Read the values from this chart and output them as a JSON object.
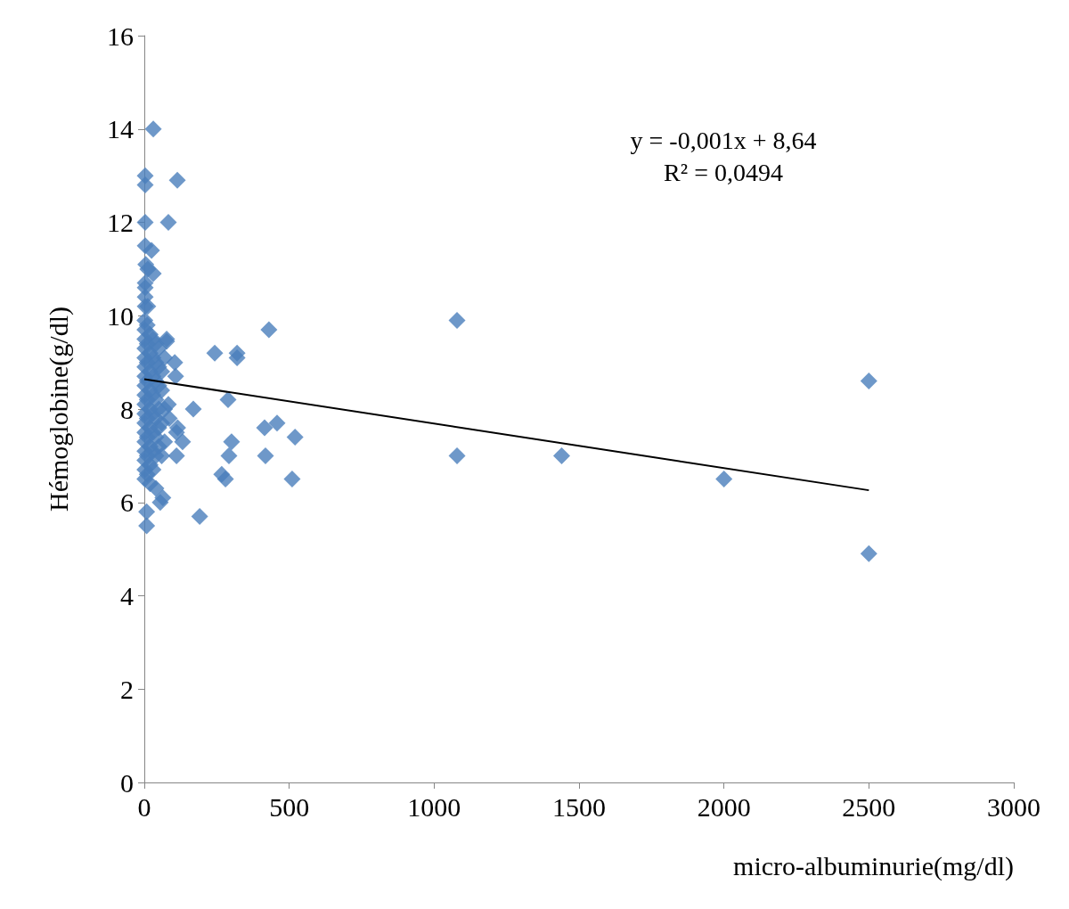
{
  "chart_data": {
    "type": "scatter",
    "xlabel": "micro-albuminurie(mg/dl)",
    "ylabel": "Hémoglobine(g/dl)",
    "xlim": [
      0,
      3000
    ],
    "xticks": [
      0,
      500,
      1000,
      1500,
      2000,
      2500,
      3000
    ],
    "ylim": [
      0,
      16
    ],
    "yticks": [
      0,
      2,
      4,
      6,
      8,
      10,
      12,
      14,
      16
    ],
    "grid": false,
    "marker": "diamond",
    "annotations": [
      "y = -0,001x + 8,64",
      "R² = 0,0494"
    ],
    "series": [
      {
        "color": "#4a7ebb",
        "x": [
          31,
          3,
          3,
          114,
          3,
          83,
          3,
          25,
          5,
          31,
          12,
          3,
          3,
          3,
          3,
          12,
          243,
          320,
          320,
          430,
          1079,
          2500,
          2500,
          2000,
          1440,
          1079,
          169,
          289,
          415,
          458,
          520,
          301,
          292,
          418,
          267,
          280,
          510,
          191,
          8,
          8,
          55,
          64,
          77,
          77,
          105,
          108,
          132,
          111,
          111,
          83,
          86,
          115,
          2,
          2,
          2,
          2,
          2,
          2,
          2,
          2,
          2,
          2,
          2,
          2,
          2,
          2,
          2,
          2,
          2,
          2,
          10,
          10,
          10,
          10,
          10,
          10,
          10,
          10,
          10,
          20,
          20,
          20,
          20,
          20,
          20,
          20,
          20,
          20,
          30,
          30,
          30,
          30,
          30,
          30,
          30,
          30,
          40,
          40,
          40,
          40,
          40,
          40,
          40,
          40,
          50,
          50,
          50,
          50,
          50,
          50,
          60,
          60,
          60,
          60,
          70,
          70,
          70
        ],
        "values": [
          14.0,
          13.0,
          12.8,
          12.9,
          12.0,
          12.0,
          11.5,
          11.4,
          11.1,
          10.9,
          11.0,
          10.7,
          10.6,
          10.4,
          10.2,
          10.2,
          9.2,
          9.2,
          9.1,
          9.7,
          9.9,
          8.6,
          4.9,
          6.5,
          7.0,
          7.0,
          8.0,
          8.2,
          7.6,
          7.7,
          7.4,
          7.3,
          7.0,
          7.0,
          6.6,
          6.5,
          6.5,
          5.7,
          5.5,
          5.8,
          6.0,
          6.1,
          9.45,
          9.5,
          9.0,
          8.7,
          7.3,
          7.0,
          7.5,
          8.1,
          7.8,
          7.6,
          6.5,
          6.7,
          6.9,
          7.1,
          7.3,
          7.5,
          7.7,
          7.9,
          8.1,
          8.3,
          8.5,
          8.7,
          8.9,
          9.1,
          9.3,
          9.5,
          9.7,
          9.9,
          6.6,
          7.0,
          7.4,
          7.8,
          8.2,
          8.6,
          9.0,
          9.4,
          9.8,
          6.4,
          6.8,
          7.2,
          7.6,
          8.0,
          8.4,
          8.8,
          9.2,
          9.6,
          6.7,
          7.1,
          7.5,
          7.9,
          8.3,
          8.7,
          9.1,
          9.5,
          6.3,
          7.0,
          7.4,
          7.8,
          8.2,
          8.6,
          9.0,
          9.4,
          7.2,
          7.6,
          8.0,
          8.5,
          8.9,
          9.3,
          7.0,
          7.7,
          8.4,
          8.8,
          7.3,
          8.0,
          9.1
        ]
      },
      {
        "type": "line",
        "color": "#000000",
        "marker": "none",
        "x": [
          0,
          2500
        ],
        "values": [
          8.64,
          6.26
        ]
      }
    ]
  }
}
